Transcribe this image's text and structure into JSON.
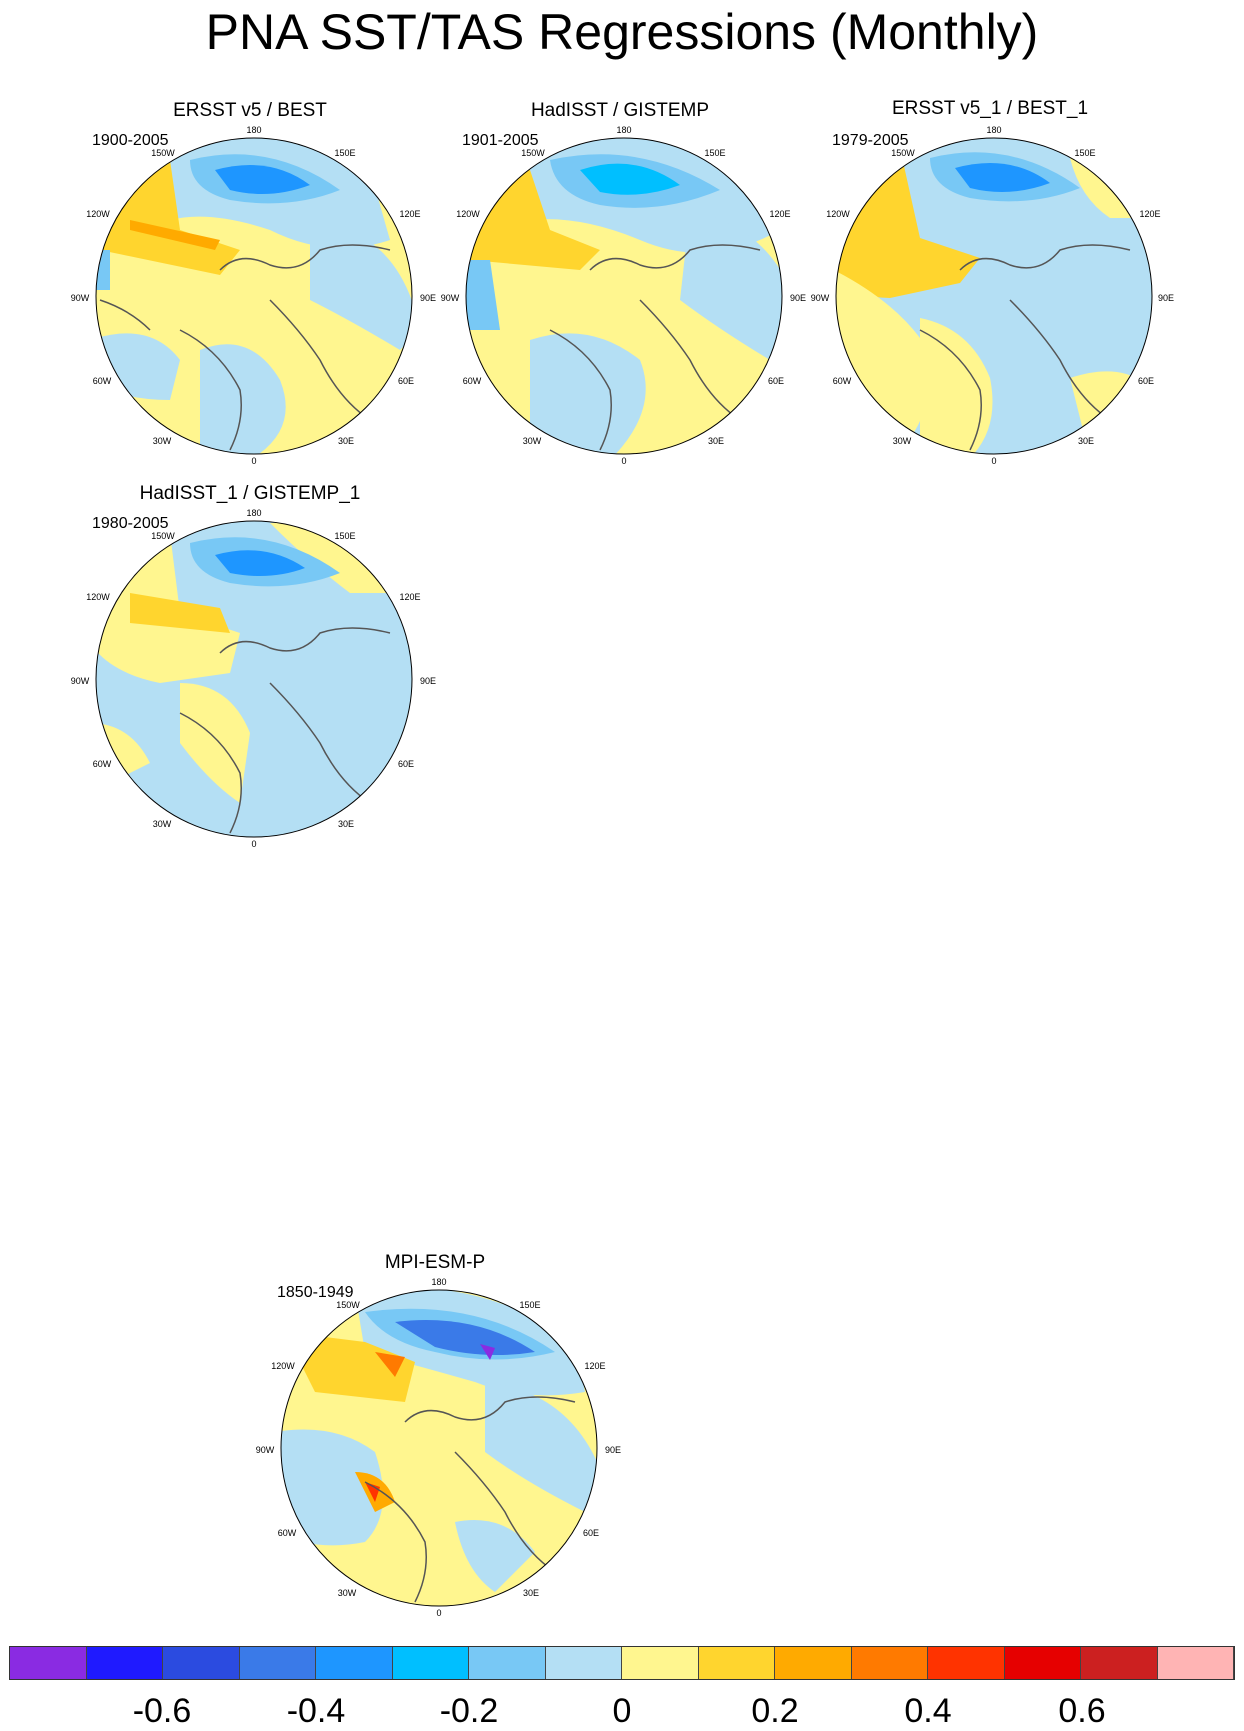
{
  "title": "PNA SST/TAS Regressions (Monthly)",
  "longitude_labels": [
    "180",
    "150E",
    "120E",
    "90E",
    "60E",
    "30E",
    "0",
    "30W",
    "60W",
    "90W",
    "120W",
    "150W"
  ],
  "panels": [
    {
      "title": "ERSST v5 / BEST",
      "period": "1900-2005"
    },
    {
      "title": "HadISST / GISTEMP",
      "period": "1901-2005"
    },
    {
      "title": "ERSST v5_1 / BEST_1",
      "period": "1979-2005"
    },
    {
      "title": "HadISST_1 / GISTEMP_1",
      "period": "1980-2005"
    },
    {
      "title": "MPI-ESM-P",
      "period": "1850-1949"
    }
  ],
  "colorbar": {
    "colors": [
      "#8a2be2",
      "#1f1aff",
      "#2b4be0",
      "#3a7ae8",
      "#1e96ff",
      "#00bfff",
      "#78c8f5",
      "#b4dff4",
      "#fff68f",
      "#ffd52e",
      "#ffaa00",
      "#ff7a00",
      "#ff3300",
      "#e60000",
      "#cc2020",
      "#ffb4b4"
    ],
    "tick_labels": [
      "-0.6",
      "-0.4",
      "-0.2",
      "0",
      "0.2",
      "0.4",
      "0.6"
    ]
  }
}
